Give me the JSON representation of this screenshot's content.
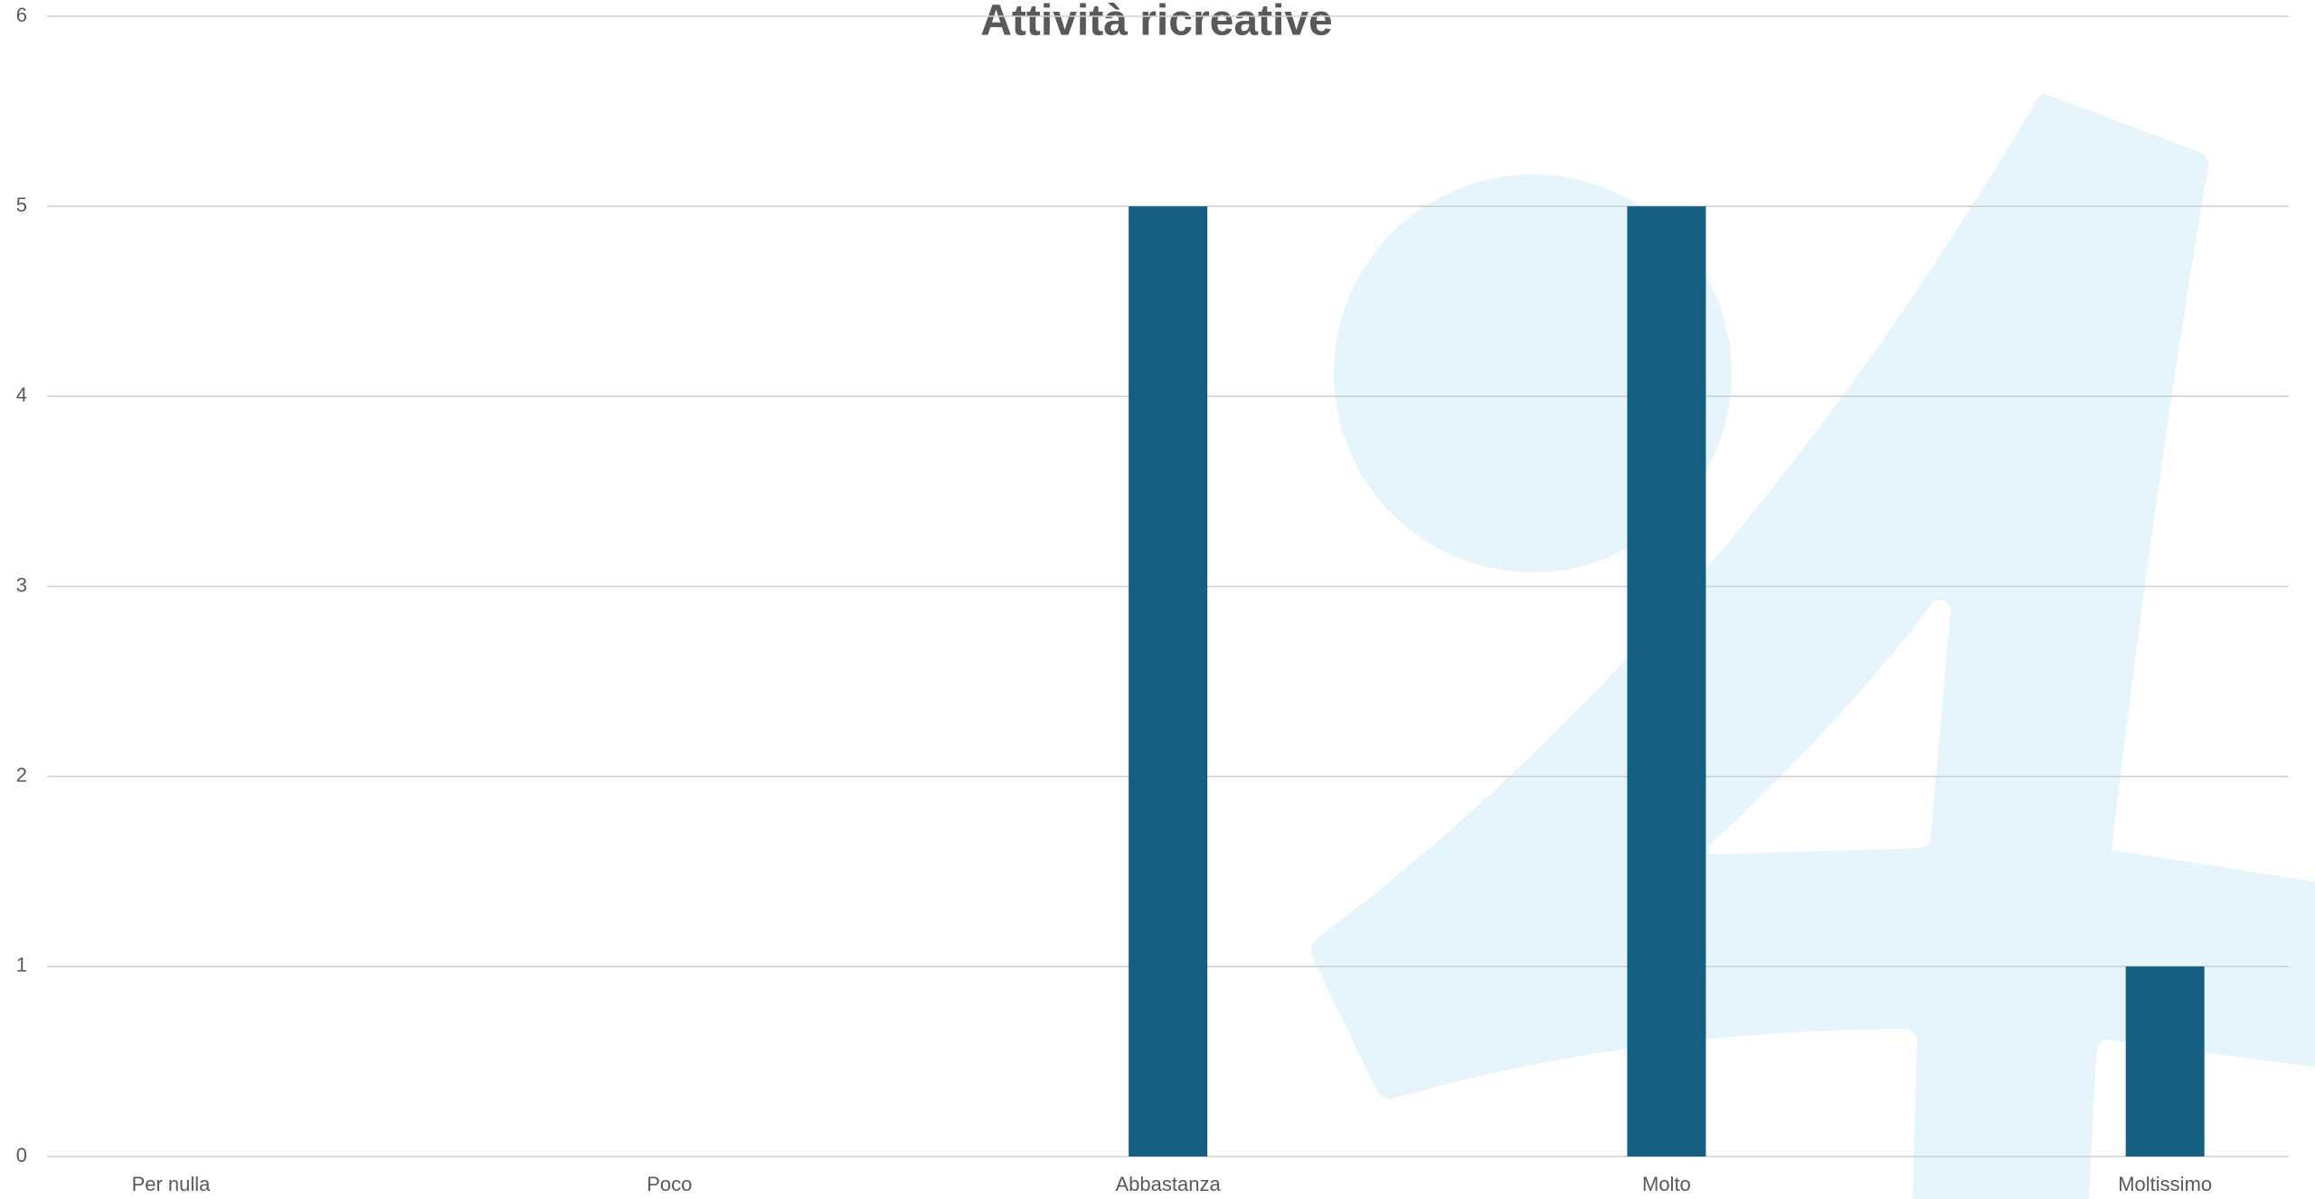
{
  "chart_data": {
    "type": "bar",
    "title": "Attività ricreative",
    "categories": [
      "Per nulla",
      "Poco",
      "Abbastanza",
      "Molto",
      "Moltissimo"
    ],
    "values": [
      0,
      0,
      5,
      5,
      1
    ],
    "color": "#155f82",
    "ylim": [
      0,
      6
    ],
    "yticks": [
      0,
      1,
      2,
      3,
      4,
      5,
      6
    ],
    "grid": true
  }
}
